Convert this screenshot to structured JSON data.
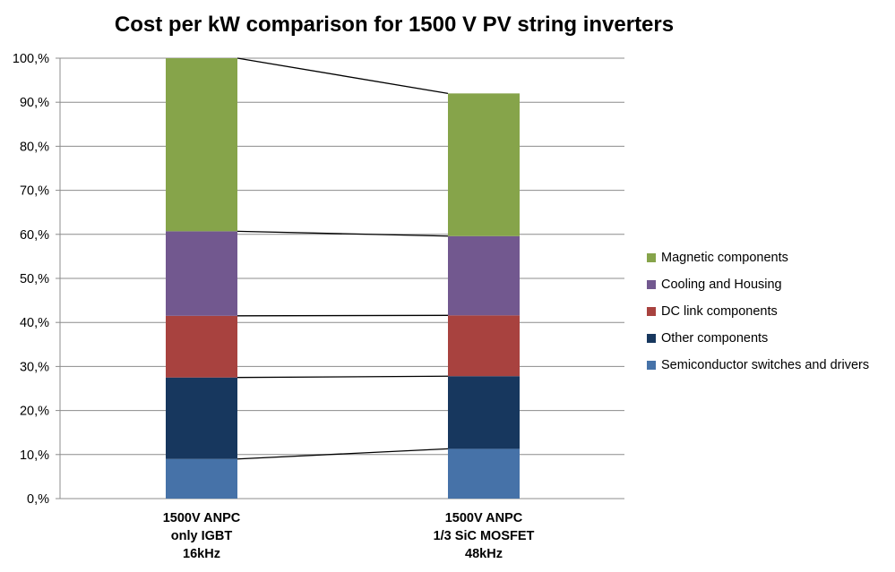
{
  "chart_data": {
    "type": "bar",
    "stacked": true,
    "title": "Cost per kW comparison for 1500 V PV string inverters",
    "xlabel": "",
    "ylabel": "",
    "ylim": [
      0,
      100
    ],
    "yticks": [
      "0,%",
      "10,%",
      "20,%",
      "30,%",
      "40,%",
      "50,%",
      "60,%",
      "70,%",
      "80,%",
      "90,%",
      "100,%"
    ],
    "grid": true,
    "legend_position": "right",
    "categories": [
      [
        "1500V ANPC",
        "only IGBT",
        "16kHz"
      ],
      [
        "1500V ANPC",
        "1/3 SiC MOSFET",
        "48kHz"
      ]
    ],
    "series": [
      {
        "name": "Semiconductor switches and drivers",
        "color": "#4672A8",
        "values": [
          9.0,
          11.3
        ]
      },
      {
        "name": "Other components",
        "color": "#17375E",
        "values": [
          18.5,
          16.5
        ]
      },
      {
        "name": "DC link components",
        "color": "#A8423F",
        "values": [
          14.0,
          13.8
        ]
      },
      {
        "name": "Cooling and Housing",
        "color": "#72588F",
        "values": [
          19.2,
          18.0
        ]
      },
      {
        "name": "Magnetic components",
        "color": "#86A44A",
        "values": [
          39.3,
          32.4
        ]
      }
    ],
    "series_lines": true
  }
}
